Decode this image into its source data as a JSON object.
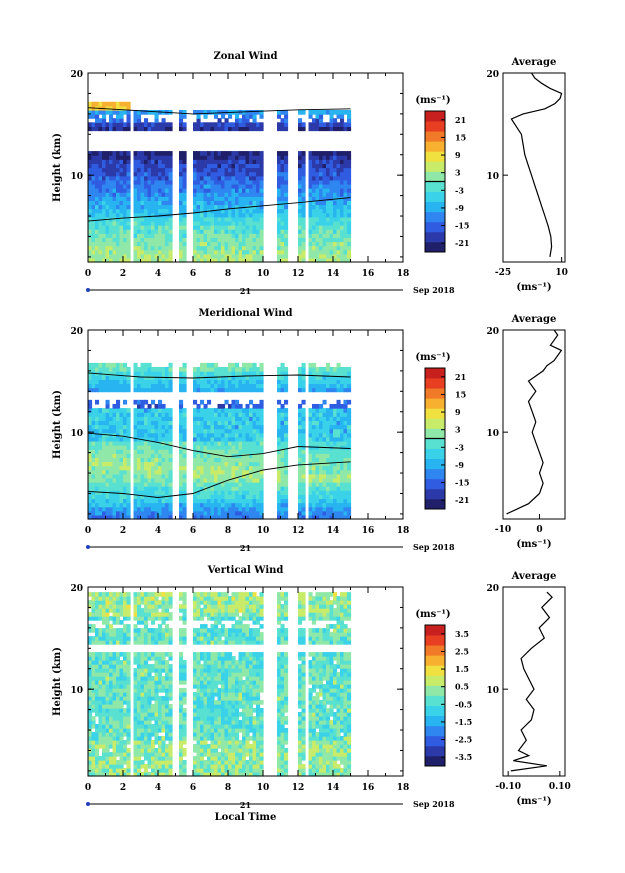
{
  "colors": {
    "scale": [
      "#20206a",
      "#2b3aa8",
      "#2f5ce0",
      "#2f86f0",
      "#27b4f0",
      "#3ad2e8",
      "#58e0d0",
      "#8fe8a8",
      "#c8ec6a",
      "#f0e040",
      "#f8b030",
      "#f07a28",
      "#e83e22",
      "#c8201e"
    ],
    "contour": "#000000",
    "axis": "#000000"
  },
  "chart_data": [
    {
      "type": "heatmap",
      "title": "Zonal Wind",
      "xlabel": "",
      "ylabel": "Height (km)",
      "x_ticks": [
        "0",
        "2",
        "4",
        "6",
        "8",
        "10",
        "12",
        "14",
        "16",
        "18"
      ],
      "y_ticks": [
        "20",
        "10"
      ],
      "xlim": [
        0,
        18
      ],
      "ylim": [
        1.5,
        20
      ],
      "date_label": "21",
      "date_right": "Sep 2018",
      "colorbar": {
        "unit": "(ms⁻¹)",
        "ticks": [
          "21",
          "15",
          "9",
          "3",
          "-3",
          "-9",
          "-15",
          "-21"
        ],
        "range": [
          -24,
          24
        ],
        "contour_at": 0
      },
      "gaps": [
        [
          2.4,
          2.6
        ],
        [
          4.8,
          5.2
        ],
        [
          5.6,
          6.0
        ],
        [
          10.0,
          10.8
        ],
        [
          11.4,
          12.0
        ],
        [
          12.4,
          12.6
        ]
      ],
      "data_extent": {
        "x": [
          0,
          15
        ],
        "y": [
          1.5,
          20
        ]
      },
      "profile": {
        "title": "Average",
        "xlim": [
          -25,
          12
        ],
        "xticks": [
          "-25",
          "10"
        ],
        "xlabel": "(ms⁻¹)",
        "y_ticks": [
          "20",
          "10"
        ],
        "y": [
          2,
          3,
          4,
          5,
          6,
          7,
          8,
          9,
          10,
          11,
          12,
          13,
          14,
          15,
          15.5,
          16,
          16.5,
          17,
          17.5,
          18,
          18.5,
          19,
          19.5,
          20
        ],
        "x": [
          3,
          4,
          3.5,
          2,
          0,
          -2,
          -4,
          -6,
          -8,
          -10,
          -12,
          -13,
          -14,
          -18,
          -20,
          -13,
          0,
          6,
          9,
          10,
          3,
          -2,
          -6,
          -8
        ]
      }
    },
    {
      "type": "heatmap",
      "title": "Meridional Wind",
      "xlabel": "",
      "ylabel": "Height (km)",
      "x_ticks": [
        "0",
        "2",
        "4",
        "6",
        "8",
        "10",
        "12",
        "14",
        "16",
        "18"
      ],
      "y_ticks": [
        "20",
        "10"
      ],
      "xlim": [
        0,
        18
      ],
      "ylim": [
        1.5,
        20
      ],
      "date_label": "21",
      "date_right": "Sep 2018",
      "colorbar": {
        "unit": "(ms⁻¹)",
        "ticks": [
          "21",
          "15",
          "9",
          "3",
          "-3",
          "-9",
          "-15",
          "-21"
        ],
        "range": [
          -24,
          24
        ],
        "contour_at": 0
      },
      "gaps": [
        [
          2.4,
          2.6
        ],
        [
          4.8,
          5.2
        ],
        [
          5.6,
          6.0
        ],
        [
          10.0,
          10.8
        ],
        [
          11.4,
          12.0
        ],
        [
          12.4,
          12.6
        ]
      ],
      "data_extent": {
        "x": [
          0,
          15
        ],
        "y": [
          1.5,
          20
        ]
      },
      "profile": {
        "title": "Average",
        "xlim": [
          -10,
          7
        ],
        "xticks": [
          "-10",
          "0"
        ],
        "xlabel": "(ms⁻¹)",
        "y_ticks": [
          "20",
          "10"
        ],
        "y": [
          2,
          2.5,
          3,
          4,
          5,
          6,
          7,
          8,
          9,
          10,
          11,
          12,
          13,
          14,
          15,
          15.5,
          16,
          16.5,
          17,
          17.5,
          18,
          18.5,
          19,
          19.5,
          20
        ],
        "x": [
          -9,
          -6,
          -3,
          0,
          1,
          0,
          1,
          0,
          -1,
          -2,
          -1,
          -2,
          -3,
          -1,
          -3,
          -1,
          1,
          2,
          4,
          5,
          6,
          3,
          4,
          5,
          4
        ]
      }
    },
    {
      "type": "heatmap",
      "title": "Vertical Wind",
      "xlabel": "Local Time",
      "ylabel": "Height (km)",
      "x_ticks": [
        "0",
        "2",
        "4",
        "6",
        "8",
        "10",
        "12",
        "14",
        "16",
        "18"
      ],
      "y_ticks": [
        "20",
        "10"
      ],
      "xlim": [
        0,
        18
      ],
      "ylim": [
        1.5,
        20
      ],
      "date_label": "21",
      "date_right": "Sep 2018",
      "colorbar": {
        "unit": "(ms⁻¹)",
        "ticks": [
          "3.5",
          "2.5",
          "1.5",
          "0.5",
          "-0.5",
          "-1.5",
          "-2.5",
          "-3.5"
        ],
        "range": [
          -4,
          4
        ],
        "contour_at": null
      },
      "gaps": [
        [
          2.4,
          2.6
        ],
        [
          4.8,
          5.2
        ],
        [
          5.6,
          6.0
        ],
        [
          10.0,
          10.8
        ],
        [
          11.4,
          12.0
        ],
        [
          12.4,
          12.6
        ]
      ],
      "data_extent": {
        "x": [
          0,
          15
        ],
        "y": [
          1.5,
          19.5
        ]
      },
      "profile": {
        "title": "Average",
        "xlim": [
          -0.12,
          0.12
        ],
        "xticks": [
          "-0.10",
          "0.10"
        ],
        "xlabel": "(ms⁻¹)",
        "y_ticks": [
          "20",
          "10"
        ],
        "y": [
          2,
          2.5,
          3,
          3.5,
          4,
          5,
          6,
          7,
          8,
          9,
          10,
          11,
          12,
          13,
          14,
          15,
          16,
          17,
          18,
          19,
          19.5
        ],
        "x": [
          -0.09,
          0.05,
          -0.08,
          -0.02,
          -0.06,
          -0.03,
          -0.05,
          -0.01,
          0.0,
          -0.03,
          0.0,
          -0.02,
          -0.04,
          -0.05,
          -0.01,
          0.04,
          0.02,
          0.06,
          0.03,
          0.07,
          0.05
        ]
      }
    }
  ]
}
